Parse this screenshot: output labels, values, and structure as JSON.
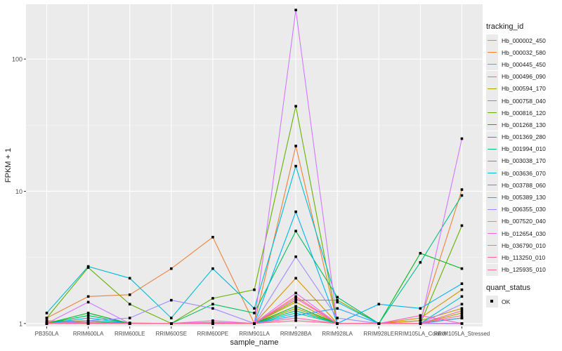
{
  "chart_data": {
    "type": "line",
    "title": "",
    "xlabel": "sample_name",
    "ylabel": "FPKM + 1",
    "yscale": "log10",
    "ylim": [
      0.95,
      260
    ],
    "y_ticks": [
      1,
      10,
      100
    ],
    "y_tick_labels": [
      "1",
      "10",
      "100"
    ],
    "categories": [
      "PB350LA",
      "RRIM600LA",
      "RRIM600LE",
      "RRIM600SE",
      "RRIM600PE",
      "RRIM901LA",
      "RRIM928BA",
      "RRIM928LA",
      "RRIM928LE",
      "RRIM105LA_Control",
      "RRIM105LA_Stressed"
    ],
    "legend_title": "tracking_id",
    "series": [
      {
        "name": "Hb_000002_450",
        "color": "#F8766D",
        "values": [
          1.05,
          1.02,
          1.01,
          1.0,
          1.02,
          1.0,
          1.6,
          1.0,
          1.0,
          1.0,
          1.1
        ]
      },
      {
        "name": "Hb_000032_580",
        "color": "#EC8239",
        "values": [
          1.1,
          1.6,
          1.65,
          2.6,
          4.5,
          1.0,
          22,
          1.0,
          1.0,
          1.05,
          10.3
        ]
      },
      {
        "name": "Hb_000445_450",
        "color": "#DB8E00",
        "values": [
          1.03,
          1.05,
          1.0,
          1.0,
          1.0,
          1.0,
          2.2,
          1.0,
          1.0,
          1.1,
          1.8
        ]
      },
      {
        "name": "Hb_000496_090",
        "color": "#C79800",
        "values": [
          1.02,
          1.02,
          1.0,
          1.0,
          1.0,
          1.0,
          1.45,
          1.0,
          1.0,
          1.05,
          1.3
        ]
      },
      {
        "name": "Hb_000594_170",
        "color": "#AEA200",
        "values": [
          1.0,
          1.01,
          1.0,
          1.0,
          1.0,
          1.0,
          1.3,
          1.0,
          1.0,
          1.0,
          1.2
        ]
      },
      {
        "name": "Hb_000758_040",
        "color": "#8FAA00",
        "values": [
          1.0,
          1.0,
          1.0,
          1.0,
          1.0,
          1.0,
          1.5,
          1.5,
          1.0,
          1.0,
          1.1
        ]
      },
      {
        "name": "Hb_000816_120",
        "color": "#64B200",
        "values": [
          1.1,
          2.65,
          1.4,
          1.0,
          1.55,
          1.8,
          44,
          1.0,
          1.0,
          1.0,
          5.5
        ]
      },
      {
        "name": "Hb_001268_130",
        "color": "#00B81B",
        "values": [
          1.0,
          1.2,
          1.0,
          1.0,
          1.0,
          1.0,
          1.35,
          1.0,
          1.0,
          3.4,
          2.6
        ]
      },
      {
        "name": "Hb_001369_280",
        "color": "#00BD5C",
        "values": [
          1.0,
          1.15,
          1.0,
          1.0,
          1.4,
          1.2,
          5.0,
          1.58,
          1.0,
          1.0,
          1.0
        ]
      },
      {
        "name": "Hb_001994_010",
        "color": "#00C08E",
        "values": [
          1.0,
          1.05,
          1.0,
          1.0,
          1.0,
          1.0,
          1.25,
          1.0,
          1.0,
          2.9,
          9.3
        ]
      },
      {
        "name": "Hb_003038_170",
        "color": "#00C1B2",
        "values": [
          1.0,
          1.0,
          1.0,
          1.0,
          1.0,
          1.0,
          1.2,
          1.0,
          1.0,
          1.0,
          1.0
        ]
      },
      {
        "name": "Hb_003636_070",
        "color": "#00BCD6",
        "values": [
          1.2,
          2.7,
          2.2,
          1.1,
          2.6,
          1.3,
          15.5,
          1.45,
          1.0,
          1.0,
          1.6
        ]
      },
      {
        "name": "Hb_003788_060",
        "color": "#00B3F2",
        "values": [
          1.0,
          1.1,
          1.0,
          1.0,
          1.0,
          1.0,
          7.0,
          1.0,
          1.4,
          1.3,
          2.0
        ]
      },
      {
        "name": "Hb_005389_130",
        "color": "#29A3FF",
        "values": [
          1.0,
          1.02,
          1.0,
          1.0,
          1.0,
          1.0,
          1.15,
          1.3,
          1.0,
          1.0,
          1.1
        ]
      },
      {
        "name": "Hb_006355_030",
        "color": "#9C8DFF",
        "values": [
          1.0,
          1.05,
          1.1,
          1.5,
          1.3,
          1.0,
          3.2,
          1.1,
          1.0,
          1.0,
          1.4
        ]
      },
      {
        "name": "Hb_007520_040",
        "color": "#D277FF",
        "values": [
          1.0,
          1.45,
          1.0,
          1.0,
          1.0,
          1.0,
          235,
          1.0,
          1.0,
          1.0,
          25
        ]
      },
      {
        "name": "Hb_012654_030",
        "color": "#F166E8",
        "values": [
          1.0,
          1.02,
          1.0,
          1.0,
          1.05,
          1.0,
          1.7,
          1.0,
          1.0,
          1.0,
          1.0
        ]
      },
      {
        "name": "Hb_036790_010",
        "color": "#FF61C7",
        "values": [
          1.0,
          1.0,
          1.0,
          1.0,
          1.0,
          1.0,
          1.55,
          1.0,
          1.0,
          1.15,
          1.0
        ]
      },
      {
        "name": "Hb_113250_010",
        "color": "#FF62A0",
        "values": [
          1.0,
          1.0,
          1.0,
          1.0,
          1.0,
          1.0,
          1.1,
          1.0,
          1.0,
          1.0,
          1.25
        ]
      },
      {
        "name": "Hb_125935_010",
        "color": "#FF6C91",
        "values": [
          1.0,
          1.0,
          1.0,
          1.0,
          1.0,
          1.0,
          1.05,
          1.0,
          1.0,
          1.0,
          1.15
        ]
      }
    ],
    "legend2_title": "quant_status",
    "legend2_item": "OK",
    "grid": true,
    "legend_position": "right"
  }
}
